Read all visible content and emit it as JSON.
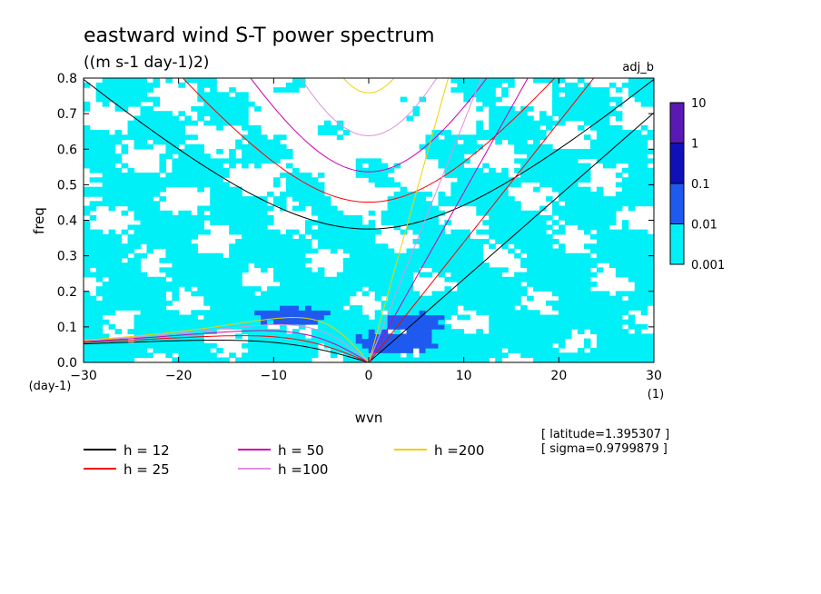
{
  "chart_data": {
    "type": "heatmap",
    "title": "eastward wind S-T power spectrum",
    "subtitle": "((m s-1 day-1)2)",
    "run_label": "adj_b",
    "xlabel": "wvn",
    "ylabel": "freq",
    "x_unit": "(1)",
    "y_unit": "(day-1)",
    "xlim": [
      -30,
      30
    ],
    "ylim": [
      0,
      0.8
    ],
    "x_ticks": [
      -30,
      -20,
      -10,
      0,
      10,
      20,
      30
    ],
    "y_ticks": [
      0.0,
      0.1,
      0.2,
      0.3,
      0.4,
      0.5,
      0.6,
      0.7,
      0.8
    ],
    "x_tick_labels": [
      "−30",
      "−20",
      "−10",
      "0",
      "10",
      "20",
      "30"
    ],
    "y_tick_labels": [
      "0.0",
      "0.1",
      "0.2",
      "0.3",
      "0.4",
      "0.5",
      "0.6",
      "0.7",
      "0.8"
    ],
    "colorbar": {
      "levels": [
        "10",
        "1",
        "0.1",
        "0.01",
        "0.001"
      ],
      "colors": [
        "#5a18b4",
        "#1010b8",
        "#1e5af0",
        "#00f0f8"
      ]
    },
    "field_description": "shaded power spectrum with levels 0.001-0.01 covering most of the domain and 0.01-0.1 patches near wvn 0-10, freq 0.05-0.15",
    "dispersion_curves": [
      {
        "h": 12,
        "color": "#000000"
      },
      {
        "h": 25,
        "color": "#ff0000"
      },
      {
        "h": 50,
        "color": "#d000b0"
      },
      {
        "h": 100,
        "color": "#e090e0"
      },
      {
        "h": 200,
        "color": "#f0d000"
      }
    ],
    "legend": [
      {
        "label": "h = 12",
        "color": "#000000"
      },
      {
        "label": "h = 25",
        "color": "#ff0000"
      },
      {
        "label": "h = 50",
        "color": "#d000b0"
      },
      {
        "label": "h =100",
        "color": "#e090e0"
      },
      {
        "label": "h =200",
        "color": "#f0d000"
      }
    ],
    "annotations": [
      "[ latitude=1.395307 ]",
      "[ sigma=0.9799879 ]"
    ]
  }
}
